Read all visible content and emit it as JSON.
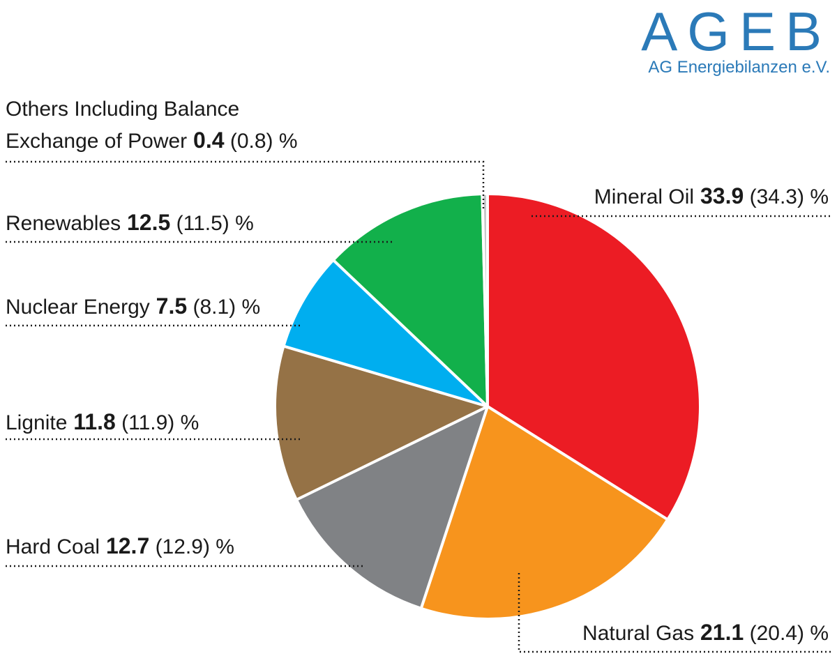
{
  "logo": {
    "main": "AGEB",
    "sub": "AG Energiebilanzen e.V."
  },
  "chart_data": {
    "type": "pie",
    "unit": "%",
    "start_angle_deg": 0,
    "direction": "clockwise",
    "slices": [
      {
        "name": "Mineral Oil",
        "value": 33.9,
        "prev": "34.3",
        "color": "#ec1c24"
      },
      {
        "name": "Natural Gas",
        "value": 21.1,
        "prev": "20.4",
        "color": "#f7941d"
      },
      {
        "name": "Hard Coal",
        "value": 12.7,
        "prev": "12.9",
        "color": "#808285"
      },
      {
        "name": "Lignite",
        "value": 11.8,
        "prev": "11.9",
        "color": "#957246"
      },
      {
        "name": "Nuclear Energy",
        "value": 7.5,
        "prev": "8.1",
        "color": "#00aeef"
      },
      {
        "name": "Renewables",
        "value": 12.5,
        "prev": "11.5",
        "color": "#12b04b"
      },
      {
        "name": "Others Including Balance Exchange of Power",
        "name_lines": [
          "Others Including Balance",
          "Exchange of Power"
        ],
        "value": 0.4,
        "prev": "0.8",
        "color": "#c7c8ca"
      }
    ]
  }
}
